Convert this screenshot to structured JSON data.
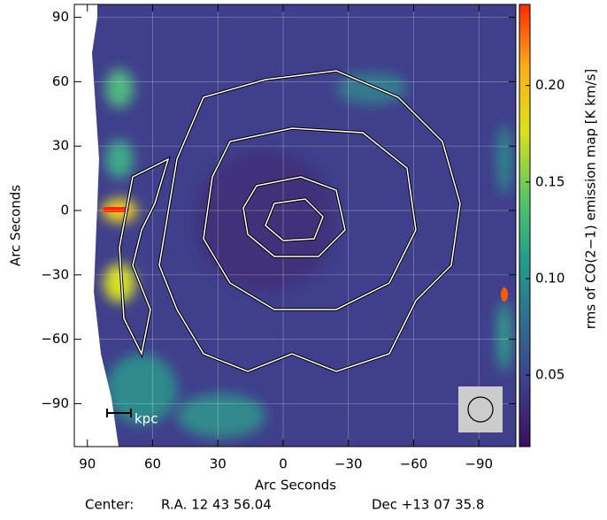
{
  "chart_data": {
    "type": "contour-map",
    "x_label": "Arc Seconds",
    "y_label": "Arc Seconds",
    "colorbar_label": "rms of CO(2−1) emission map [K km/s]",
    "center_label": "Center:",
    "ra_label": "R.A. 12 43 56.04",
    "dec_label": "Dec  +13 07 35.8",
    "scale_bar_label": "kpc",
    "xlim": [
      96,
      -107
    ],
    "ylim": [
      -110,
      96
    ],
    "xticks": [
      90,
      60,
      30,
      0,
      {
        "value": -30,
        "label": "−30"
      },
      {
        "value": -60,
        "label": "−60"
      },
      {
        "value": -90,
        "label": "−90"
      }
    ],
    "yticks": [
      90,
      60,
      30,
      0,
      {
        "value": -30,
        "label": "−30"
      },
      {
        "value": -60,
        "label": "−60"
      },
      {
        "value": -90,
        "label": "−90"
      }
    ],
    "clim": [
      0.013,
      0.242
    ],
    "cticks": [
      0.05,
      0.1,
      0.15,
      0.2
    ],
    "colormap": [
      "#3a0f5e",
      "#3d3f8a",
      "#2f6e8e",
      "#22a08a",
      "#5cc863",
      "#dce21a",
      "#fdae1a",
      "#ff2a00"
    ],
    "grid": true
  }
}
